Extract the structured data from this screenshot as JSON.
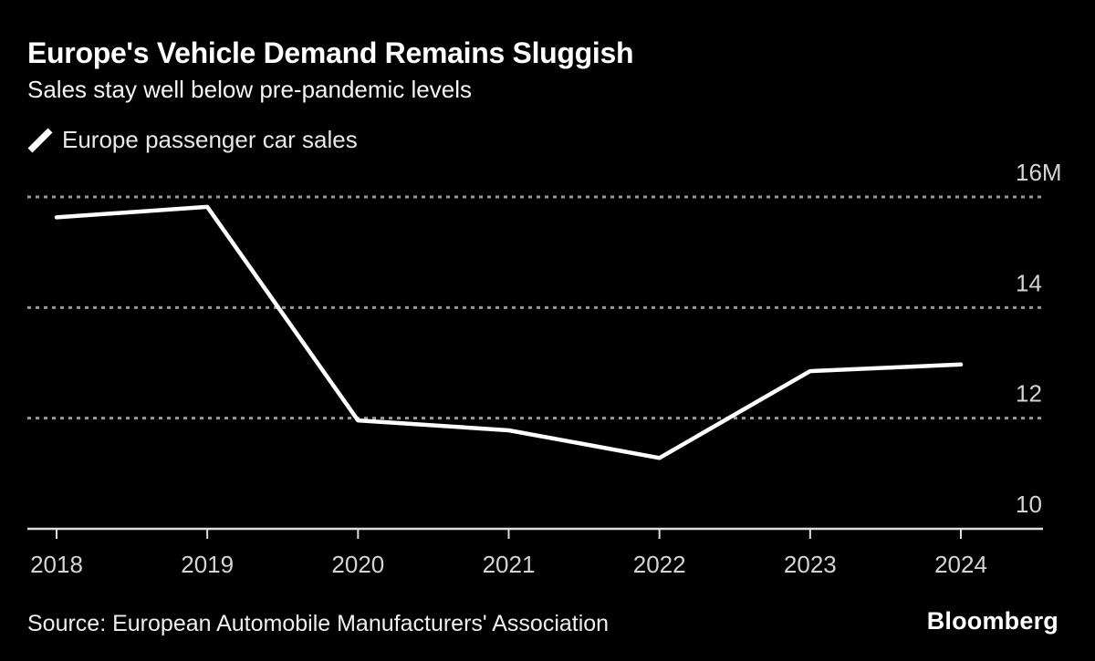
{
  "header": {
    "title": "Europe's Vehicle Demand Remains Sluggish",
    "subtitle": "Sales stay well below pre-pandemic levels"
  },
  "legend": {
    "marker_icon": "line-swatch-icon",
    "label": "Europe passenger car sales"
  },
  "footer": {
    "source": "Source: European Automobile Manufacturers' Association",
    "brand": "Bloomberg"
  },
  "colors": {
    "background": "#000000",
    "line": "#ffffff",
    "gridline": "#999999",
    "axis": "#dedede",
    "axis_text": "#d4d4d4",
    "title_text": "#ffffff"
  },
  "chart_data": {
    "type": "line",
    "title": "Europe's Vehicle Demand Remains Sluggish",
    "subtitle": "Sales stay well below pre-pandemic levels",
    "categories": [
      "2018",
      "2019",
      "2020",
      "2021",
      "2022",
      "2023",
      "2024"
    ],
    "series": [
      {
        "name": "Europe passenger car sales",
        "values": [
          15.63,
          15.82,
          11.96,
          11.78,
          11.28,
          12.85,
          12.97
        ]
      }
    ],
    "y_ticks": [
      {
        "value": 16,
        "label": "16M"
      },
      {
        "value": 14,
        "label": "14"
      },
      {
        "value": 12,
        "label": "12"
      },
      {
        "value": 10,
        "label": "10"
      }
    ],
    "ylim": [
      10,
      16.6
    ],
    "grid": "horizontal-dashed",
    "legend_position": "top-left",
    "y_axis_side": "right",
    "baseline_value": 10
  }
}
